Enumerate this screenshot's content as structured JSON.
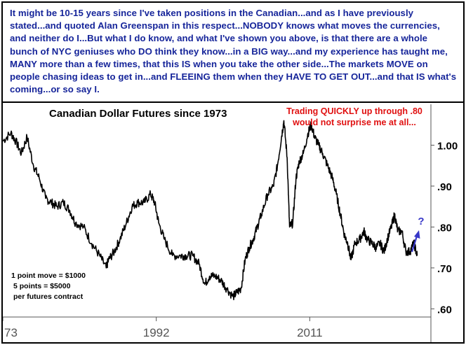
{
  "commentary": "It might be 10-15 years since I've taken positions in the Canadian...and as I have previously stated...and quoted Alan Greenspan in this respect...NOBODY knows what moves the currencies, and neither do I...But what I do know, and what I've shown you above, is that there are a whole bunch of NYC geniuses who DO think they know...in a BIG way...and my experience has taught me, MANY more than a few times, that this IS when you take the other side...The markets MOVE on people chasing ideas to get in...and FLEEING them when they HAVE TO GET OUT...and that IS what's coming...or so say I.",
  "colors": {
    "commentary_text": "#16259a",
    "annotation_red": "#e01010",
    "arrow_blue": "#3838c8",
    "price_line": "#000000",
    "axis_text": "#555555"
  },
  "chart_data": {
    "type": "line",
    "title": "Canadian Dollar Futures since 1973",
    "annotation": {
      "line1": "Trading QUICKLY up through .80",
      "line2": "would not surprise me at all..."
    },
    "question_mark": "?",
    "contract_note": [
      "1 point move = $1000",
      "5 points = $5000",
      "per futures contract"
    ],
    "x_tick_labels": [
      "73",
      "1992",
      "2011"
    ],
    "x_tick_years": [
      1973,
      1992,
      2011
    ],
    "y_tick_labels": [
      "1.00",
      ".90",
      ".80",
      ".70",
      ".60"
    ],
    "y_tick_values": [
      1.0,
      0.9,
      0.8,
      0.7,
      0.6
    ],
    "xlim": [
      1973,
      2026
    ],
    "ylim": [
      0.58,
      1.1
    ],
    "grid": false,
    "series": [
      {
        "x": [
          1973,
          1974,
          1974.6,
          1975.3,
          1976,
          1976.8,
          1977.5,
          1978.3,
          1979,
          1979.7,
          1980.5,
          1981.3,
          1982,
          1983,
          1984,
          1985,
          1985.8,
          1986.1,
          1986.8,
          1987.5,
          1988.3,
          1989,
          1989.7,
          1990.5,
          1991.3,
          1991.8,
          1992.3,
          1993,
          1994,
          1995,
          1995.7,
          1996.5,
          1997.3,
          1998,
          1998.6,
          1999.3,
          2000,
          2000.7,
          2001.5,
          2002,
          2002.5,
          2003,
          2003.5,
          2004,
          2004.5,
          2005,
          2005.8,
          2006.5,
          2007,
          2007.5,
          2007.8,
          2008.2,
          2008.5,
          2008.9,
          2009.3,
          2009.7,
          2010.2,
          2010.8,
          2011.2,
          2011.6,
          2012.1,
          2012.6,
          2013.2,
          2013.8,
          2014.3,
          2014.8,
          2015.3,
          2015.7,
          2016.1,
          2016.6,
          2017.2,
          2017.7,
          2018.1,
          2018.7,
          2019.2,
          2019.7,
          2020.2,
          2020.6,
          2021.1,
          2021.5,
          2021.9,
          2022.4,
          2022.9,
          2023.4,
          2023.9,
          2024.3
        ],
        "y": [
          1.01,
          1.03,
          1.01,
          0.98,
          1.02,
          0.95,
          0.92,
          0.87,
          0.86,
          0.85,
          0.86,
          0.84,
          0.81,
          0.8,
          0.76,
          0.73,
          0.7,
          0.72,
          0.74,
          0.77,
          0.81,
          0.85,
          0.86,
          0.86,
          0.88,
          0.86,
          0.81,
          0.77,
          0.73,
          0.73,
          0.73,
          0.73,
          0.71,
          0.66,
          0.68,
          0.68,
          0.67,
          0.65,
          0.63,
          0.64,
          0.65,
          0.72,
          0.75,
          0.77,
          0.8,
          0.83,
          0.88,
          0.9,
          0.95,
          1.02,
          1.06,
          0.97,
          0.8,
          0.81,
          0.92,
          0.96,
          0.98,
          1.03,
          1.05,
          1.02,
          1.0,
          0.98,
          0.95,
          0.92,
          0.88,
          0.83,
          0.78,
          0.76,
          0.72,
          0.76,
          0.77,
          0.79,
          0.77,
          0.76,
          0.75,
          0.76,
          0.74,
          0.77,
          0.8,
          0.83,
          0.79,
          0.79,
          0.74,
          0.74,
          0.76,
          0.73
        ]
      }
    ]
  }
}
